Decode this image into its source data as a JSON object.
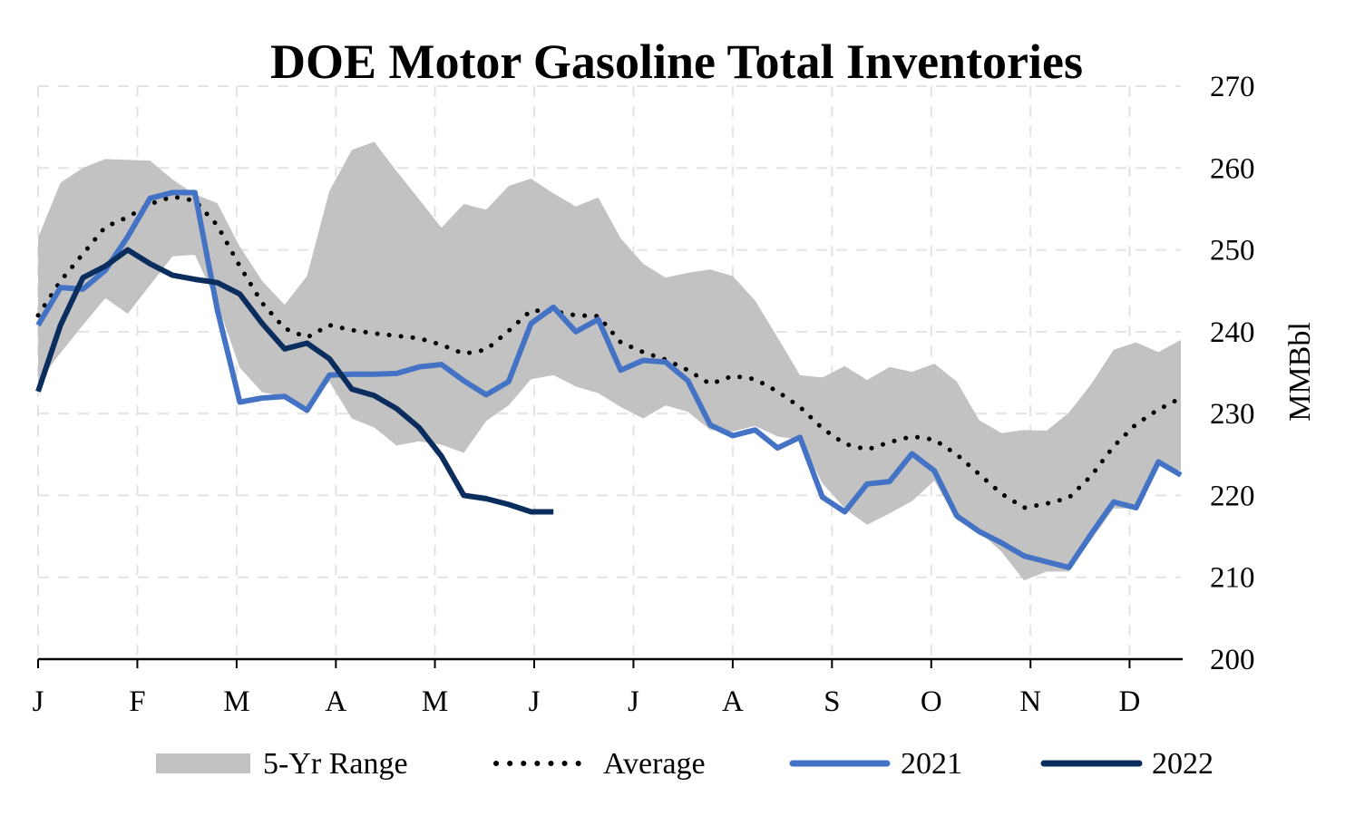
{
  "chart_data": {
    "type": "line",
    "title": "DOE Motor Gasoline Total Inventories",
    "xlabel": "",
    "ylabel": "MMBbl",
    "ylim": [
      200,
      270
    ],
    "yticks": [
      200,
      210,
      220,
      230,
      240,
      250,
      260,
      270
    ],
    "xlim": [
      1,
      52
    ],
    "month_ticks": [
      {
        "label": "J",
        "week": 1
      },
      {
        "label": "F",
        "week": 5.43
      },
      {
        "label": "M",
        "week": 9.86
      },
      {
        "label": "A",
        "week": 14.29
      },
      {
        "label": "M",
        "week": 18.71
      },
      {
        "label": "J",
        "week": 23.14
      },
      {
        "label": "J",
        "week": 27.57
      },
      {
        "label": "A",
        "week": 32.0
      },
      {
        "label": "S",
        "week": 36.43
      },
      {
        "label": "O",
        "week": 40.86
      },
      {
        "label": "N",
        "week": 45.29
      },
      {
        "label": "D",
        "week": 49.71
      }
    ],
    "grid": true,
    "legend_position": "bottom",
    "range": {
      "name": "5-Yr Range",
      "color": "#c2c2c2",
      "weeks": [
        1,
        2,
        3,
        4,
        5,
        6,
        7,
        8,
        9,
        10,
        11,
        12,
        13,
        14,
        15,
        16,
        17,
        18,
        19,
        20,
        21,
        22,
        23,
        24,
        25,
        26,
        27,
        28,
        29,
        30,
        31,
        32,
        33,
        34,
        35,
        36,
        37,
        38,
        39,
        40,
        41,
        42,
        43,
        44,
        45,
        46,
        47,
        48,
        49,
        50,
        51,
        52
      ],
      "upper": [
        251.5,
        258.2,
        260.0,
        261.1,
        261.0,
        260.9,
        258.6,
        256.8,
        255.7,
        250.4,
        246.2,
        243.3,
        246.8,
        257.2,
        262.2,
        263.2,
        259.6,
        256.2,
        252.7,
        255.6,
        254.9,
        257.8,
        258.7,
        256.9,
        255.3,
        256.4,
        251.4,
        248.3,
        246.6,
        247.2,
        247.6,
        246.8,
        243.8,
        239.3,
        234.7,
        234.4,
        235.8,
        234.1,
        235.7,
        235.1,
        236.1,
        233.9,
        229.2,
        227.6,
        228.0,
        227.9,
        230.1,
        233.6,
        237.8,
        238.7,
        237.5,
        239.0
      ],
      "lower": [
        233.8,
        237.4,
        240.8,
        244.1,
        242.2,
        245.7,
        249.2,
        249.4,
        243.5,
        235.6,
        232.6,
        232.1,
        230.6,
        233.9,
        229.4,
        228.3,
        226.1,
        226.6,
        226.2,
        225.2,
        229.1,
        231.0,
        234.2,
        234.7,
        233.3,
        232.5,
        230.8,
        229.4,
        231.0,
        230.2,
        228.0,
        227.8,
        228.5,
        227.2,
        226.8,
        221.5,
        218.4,
        216.4,
        217.8,
        219.3,
        221.8,
        217.0,
        215.6,
        213.1,
        209.6,
        210.7,
        210.7,
        214.6,
        218.4,
        218.4,
        223.6,
        223.0
      ]
    },
    "series": [
      {
        "name": "Average",
        "color": "#000000",
        "style": "dotted",
        "weeks": [
          1,
          2,
          3,
          4,
          5,
          6,
          7,
          8,
          9,
          10,
          11,
          12,
          13,
          14,
          15,
          16,
          17,
          18,
          19,
          20,
          21,
          22,
          23,
          24,
          25,
          26,
          27,
          28,
          29,
          30,
          31,
          32,
          33,
          34,
          35,
          36,
          37,
          38,
          39,
          40,
          41,
          42,
          43,
          44,
          45,
          46,
          47,
          48,
          49,
          50,
          51,
          52
        ],
        "values": [
          242.0,
          246.2,
          249.5,
          252.8,
          254.0,
          255.6,
          256.5,
          256.0,
          253.0,
          248.0,
          243.5,
          240.4,
          239.3,
          240.8,
          240.2,
          239.8,
          239.5,
          239.2,
          238.4,
          237.3,
          237.8,
          240.1,
          242.6,
          242.5,
          242.0,
          241.9,
          238.7,
          237.5,
          236.6,
          235.3,
          233.6,
          234.6,
          234.2,
          232.7,
          230.8,
          228.2,
          226.3,
          225.6,
          226.5,
          227.2,
          226.8,
          225.0,
          222.6,
          220.2,
          218.5,
          219.0,
          219.7,
          222.4,
          226.0,
          228.7,
          230.5,
          231.9
        ]
      },
      {
        "name": "2021",
        "color": "#4472c4",
        "style": "solid",
        "weeks": [
          1,
          2,
          3,
          4,
          5,
          6,
          7,
          8,
          9,
          10,
          11,
          12,
          13,
          14,
          15,
          16,
          17,
          18,
          19,
          20,
          21,
          22,
          23,
          24,
          25,
          26,
          27,
          28,
          29,
          30,
          31,
          32,
          33,
          34,
          35,
          36,
          37,
          38,
          39,
          40,
          41,
          42,
          43,
          44,
          45,
          46,
          47,
          48,
          49,
          50,
          51,
          52
        ],
        "values": [
          240.8,
          245.4,
          245.2,
          247.5,
          251.6,
          256.3,
          257.0,
          257.0,
          242.7,
          231.4,
          231.9,
          232.1,
          230.4,
          234.7,
          234.8,
          234.8,
          234.9,
          235.7,
          236.0,
          234.0,
          232.3,
          233.9,
          241.0,
          243.0,
          240.0,
          241.5,
          235.3,
          236.5,
          236.3,
          234.0,
          228.6,
          227.3,
          228.0,
          225.8,
          227.1,
          219.8,
          218.0,
          221.4,
          221.7,
          225.1,
          223.0,
          217.5,
          215.6,
          214.2,
          212.6,
          211.9,
          211.2,
          215.3,
          219.2,
          218.5,
          224.1,
          222.5
        ]
      },
      {
        "name": "2022",
        "color": "#0a2d5e",
        "style": "solid",
        "weeks": [
          1,
          2,
          3,
          4,
          5,
          6,
          7,
          8,
          9,
          10,
          11,
          12,
          13,
          14,
          15,
          16,
          17,
          18,
          19,
          20,
          21,
          22,
          23,
          24
        ],
        "values": [
          232.7,
          240.8,
          246.6,
          248.0,
          250.0,
          248.3,
          246.9,
          246.4,
          246.0,
          244.6,
          241.0,
          237.9,
          238.6,
          236.7,
          233.0,
          232.2,
          230.6,
          228.3,
          224.8,
          220.0,
          219.6,
          218.9,
          218.0,
          218.0
        ]
      }
    ]
  }
}
